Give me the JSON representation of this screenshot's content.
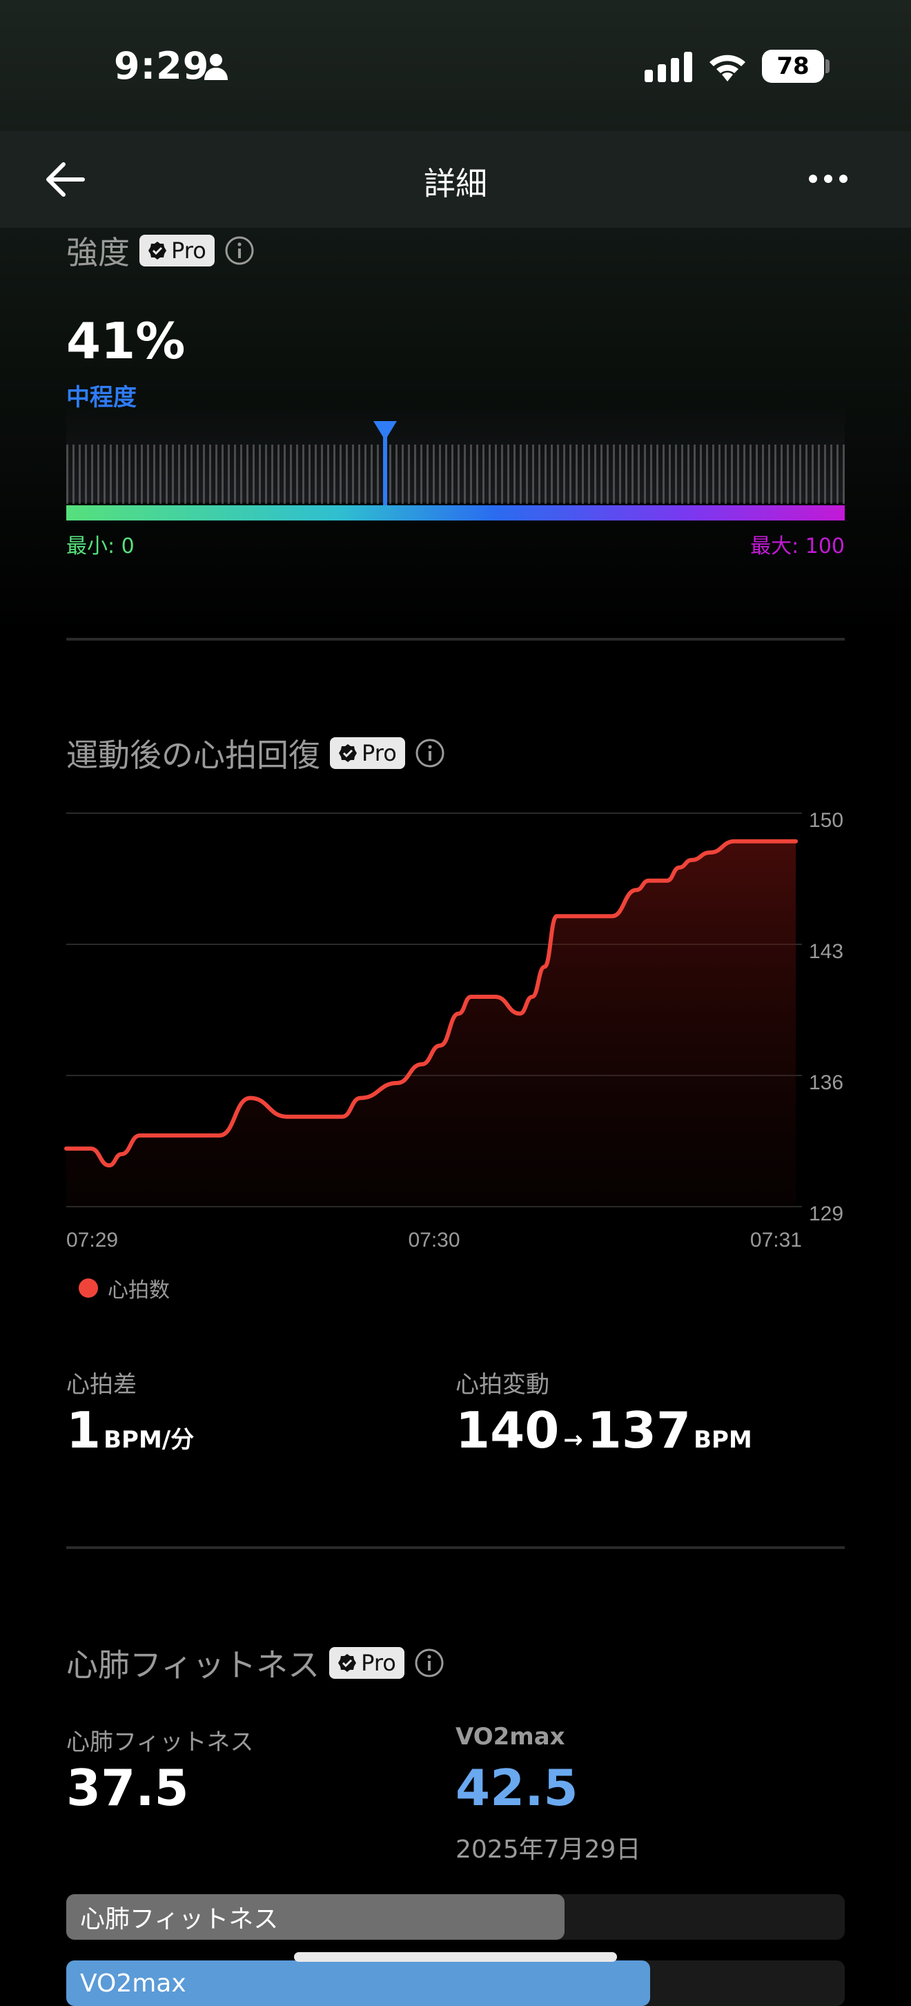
{
  "status": {
    "time": "9:29",
    "battery": "78"
  },
  "nav": {
    "title": "詳細"
  },
  "pro_label": "Pro",
  "intensity": {
    "title": "強度",
    "value": "41%",
    "fraction": 0.41,
    "level": "中程度",
    "min_label": "最小: 0",
    "max_label": "最大: 100",
    "colors": {
      "level": "#2f7cf6",
      "min": "#56e07c",
      "max": "#c21ad6"
    }
  },
  "recovery": {
    "title": "運動後の心拍回復",
    "legend": "心拍数",
    "diff_label": "心拍差",
    "diff_value": "1",
    "diff_unit": "BPM/分",
    "change_label": "心拍変動",
    "change_from": "140",
    "change_arrow": "→",
    "change_to": "137",
    "change_unit": "BPM"
  },
  "chart_data": {
    "type": "area",
    "x_ticks": [
      "07:29",
      "07:30",
      "07:31"
    ],
    "y_ticks": [
      "150",
      "143",
      "136",
      "129"
    ],
    "ylim": [
      129,
      150
    ],
    "xlim_seconds": [
      0,
      120
    ],
    "grid": true,
    "legend_position": "bottom-left",
    "series": [
      {
        "name": "心拍数",
        "color": "#f0443a",
        "x": [
          0,
          4,
          7,
          9,
          12,
          15,
          20,
          25,
          30,
          36,
          40,
          43,
          45,
          48,
          54,
          58,
          61,
          64,
          66,
          68,
          70,
          74,
          76,
          78,
          80,
          82,
          85,
          89,
          93,
          95,
          98,
          100,
          102,
          105,
          109,
          111,
          114,
          116,
          119
        ],
        "values": [
          132.1,
          132.1,
          131.2,
          131.8,
          132.8,
          132.8,
          132.8,
          132.8,
          134.8,
          133.8,
          133.8,
          133.8,
          133.8,
          134.8,
          135.6,
          136.6,
          137.6,
          139.3,
          140.2,
          140.2,
          140.2,
          139.3,
          140.2,
          141.8,
          144.5,
          144.5,
          144.5,
          144.5,
          145.9,
          146.4,
          146.4,
          147.1,
          147.5,
          147.9,
          148.5,
          148.5,
          148.5,
          148.5,
          148.5
        ]
      }
    ]
  },
  "cardio": {
    "title": "心肺フィットネス",
    "fitness_label": "心肺フィットネス",
    "fitness_value": "37.5",
    "vo2_label": "VO2max",
    "vo2_value": "42.5",
    "date": "2025年7月29日",
    "bar1_label": "心肺フィットネス",
    "bar1_fraction": 0.64,
    "bar2_label": "VO2max",
    "bar2_fraction": 0.75,
    "colors": {
      "vo2": "#6aa9f0",
      "bar1": "#6f6f6f",
      "bar2": "#5b9bd8"
    }
  }
}
